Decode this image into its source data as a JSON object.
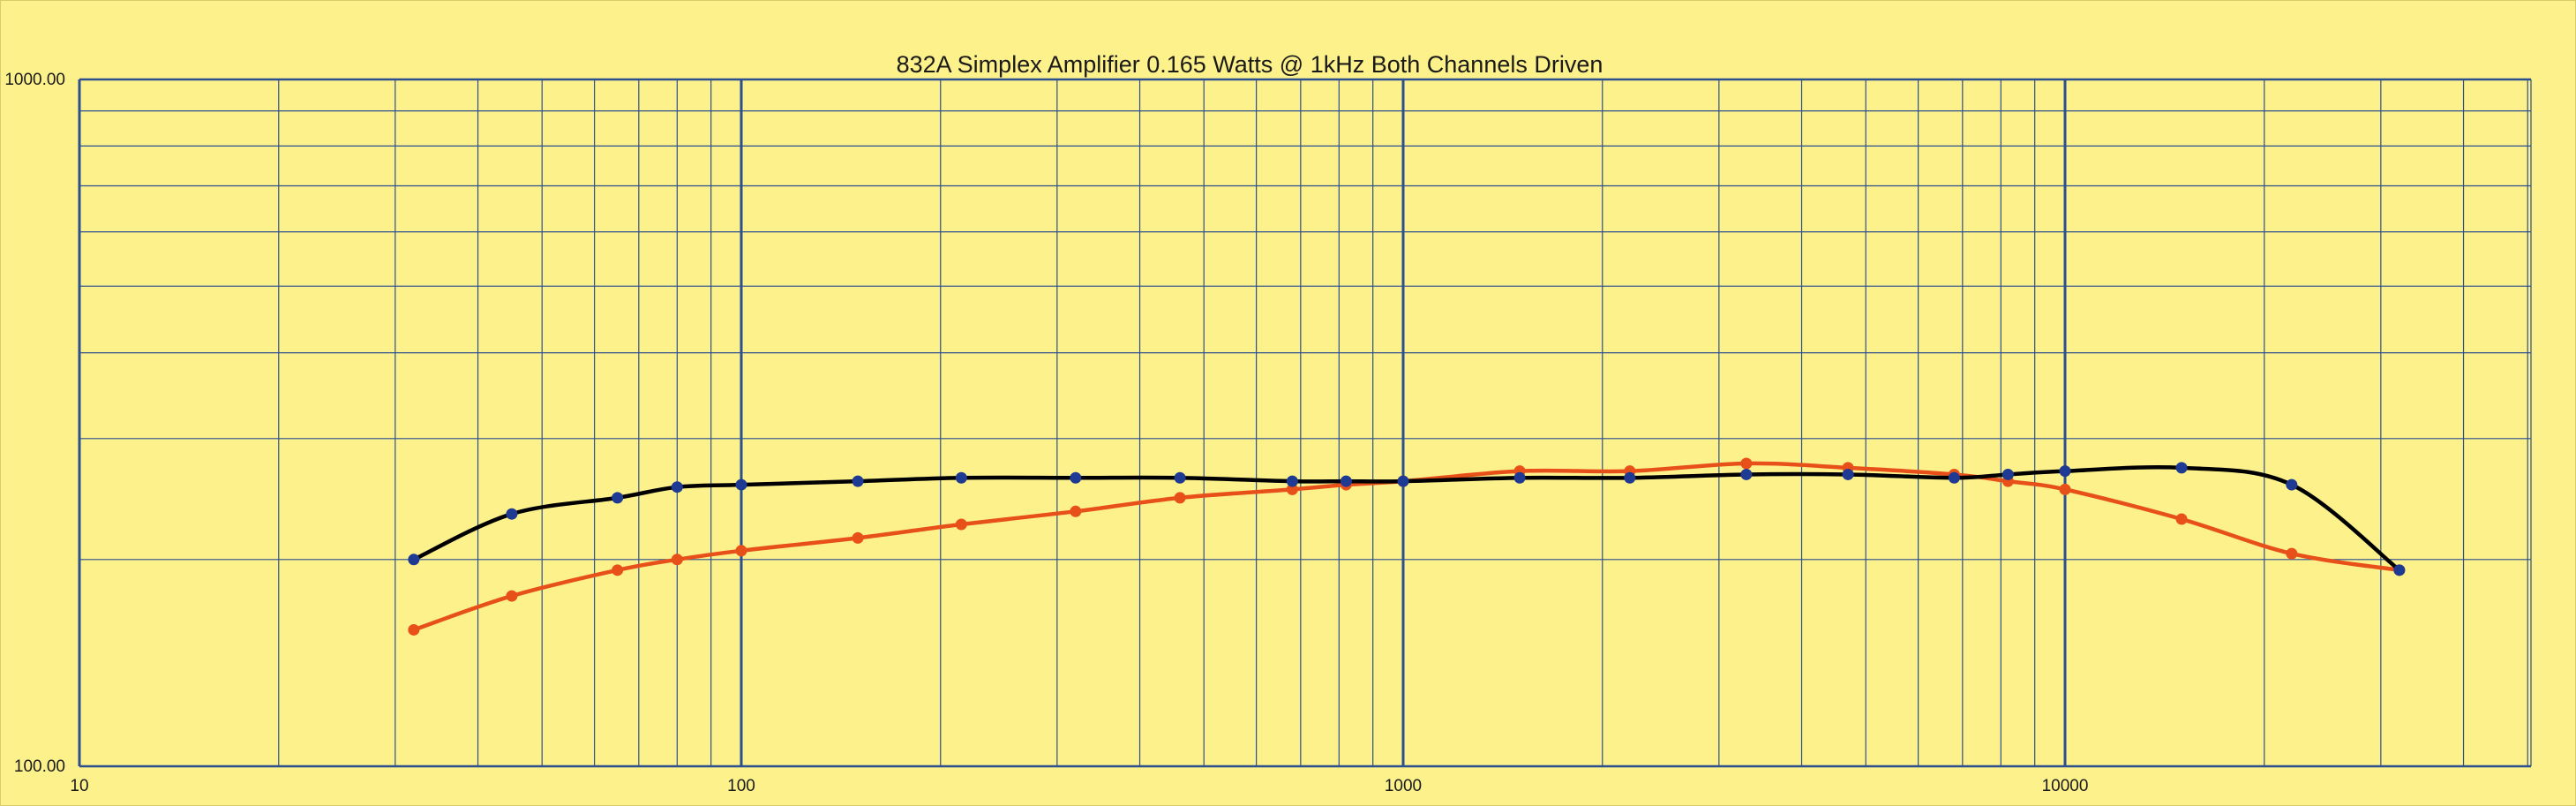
{
  "chart_data": {
    "type": "line",
    "title": "832A Simplex Amplifier 0.165 Watts @ 1kHz Both Channels Driven",
    "xlabel": "",
    "ylabel": "",
    "x_scale": "log",
    "y_scale": "log",
    "xlim": [
      10,
      60000
    ],
    "ylim": [
      100,
      1000
    ],
    "x_tick_labels": [
      "10",
      "100",
      "1000",
      "10000"
    ],
    "x_ticks": [
      10,
      100,
      1000,
      10000
    ],
    "y_tick_labels": [
      "100.00",
      "1000.00"
    ],
    "y_ticks": [
      100,
      1000
    ],
    "grid": true,
    "legend": "none",
    "series": [
      {
        "color": "#000000",
        "marker_color": "#1f3a93",
        "x": [
          32,
          45,
          65,
          80,
          100,
          150,
          215,
          320,
          460,
          680,
          820,
          1000,
          1500,
          2200,
          3300,
          4700,
          6800,
          8200,
          10000,
          15000,
          22000,
          32000
        ],
        "y": [
          200,
          233,
          246,
          255,
          257,
          260,
          263,
          263,
          263,
          260,
          260,
          260,
          263,
          263,
          266,
          266,
          263,
          266,
          269,
          272,
          257,
          193
        ]
      },
      {
        "color": "#e8501a",
        "marker_color": "#e8501a",
        "x": [
          32,
          45,
          65,
          80,
          100,
          150,
          215,
          320,
          460,
          680,
          820,
          1000,
          1500,
          2200,
          3300,
          4700,
          6800,
          8200,
          10000,
          15000,
          22000,
          32000
        ],
        "y": [
          158,
          177,
          193,
          200,
          206,
          215,
          225,
          235,
          246,
          253,
          257,
          260,
          269,
          269,
          276,
          272,
          266,
          260,
          253,
          229,
          204,
          193
        ]
      }
    ]
  }
}
